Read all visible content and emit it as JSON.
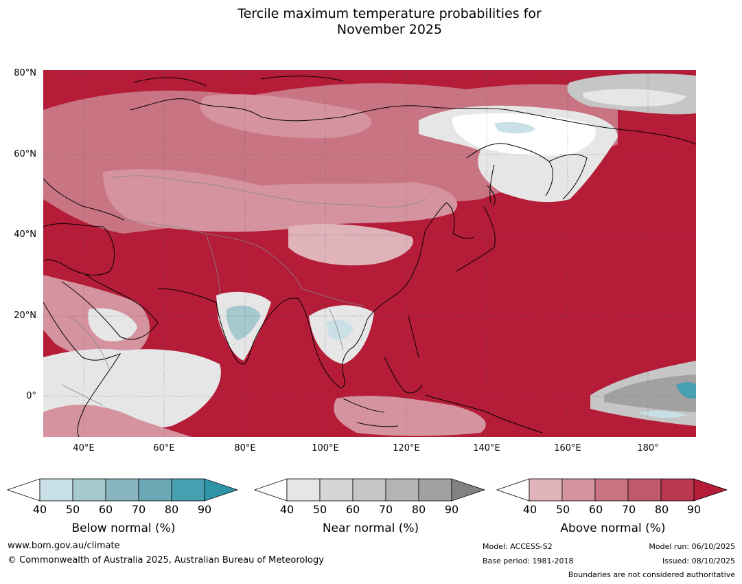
{
  "title": {
    "line1": "Tercile maximum temperature probabilities for",
    "line2": "November 2025"
  },
  "map": {
    "lat_labels": [
      "80°N",
      "60°N",
      "40°N",
      "20°N",
      "0°"
    ],
    "lon_labels": [
      "40°E",
      "60°E",
      "80°E",
      "100°E",
      "120°E",
      "140°E",
      "160°E",
      "180°"
    ],
    "colors": {
      "above_dominant": "#b41c38",
      "sea": "#b41c38"
    }
  },
  "colorbars": {
    "below": {
      "label": "Below normal (%)",
      "ticks": [
        "40",
        "50",
        "60",
        "70",
        "80",
        "90"
      ],
      "colors": [
        "#c8e0e6",
        "#a6c8cf",
        "#88b4bf",
        "#6aa8b6",
        "#47a0b0",
        "#2e95a6"
      ]
    },
    "near": {
      "label": "Near normal (%)",
      "ticks": [
        "40",
        "50",
        "60",
        "70",
        "80",
        "90"
      ],
      "colors": [
        "#e6e6e6",
        "#d5d5d5",
        "#c6c6c6",
        "#b4b4b4",
        "#a1a1a1",
        "#828282"
      ]
    },
    "above": {
      "label": "Above normal (%)",
      "ticks": [
        "40",
        "50",
        "60",
        "70",
        "80",
        "90"
      ],
      "colors": [
        "#e0b3ba",
        "#d4939e",
        "#c97482",
        "#be5a6a",
        "#b8384f",
        "#b41c38"
      ]
    }
  },
  "footer": {
    "website": "www.bom.gov.au/climate",
    "copyright": "© Commonwealth of Australia 2025, Australian Bureau of Meteorology",
    "model": "Model: ACCESS-S2",
    "base_period": "Base period: 1981-2018",
    "model_run": "Model run: 06/10/2025",
    "issued": "Issued: 08/10/2025",
    "disclaimer": "Boundaries are not considered authoritative"
  }
}
